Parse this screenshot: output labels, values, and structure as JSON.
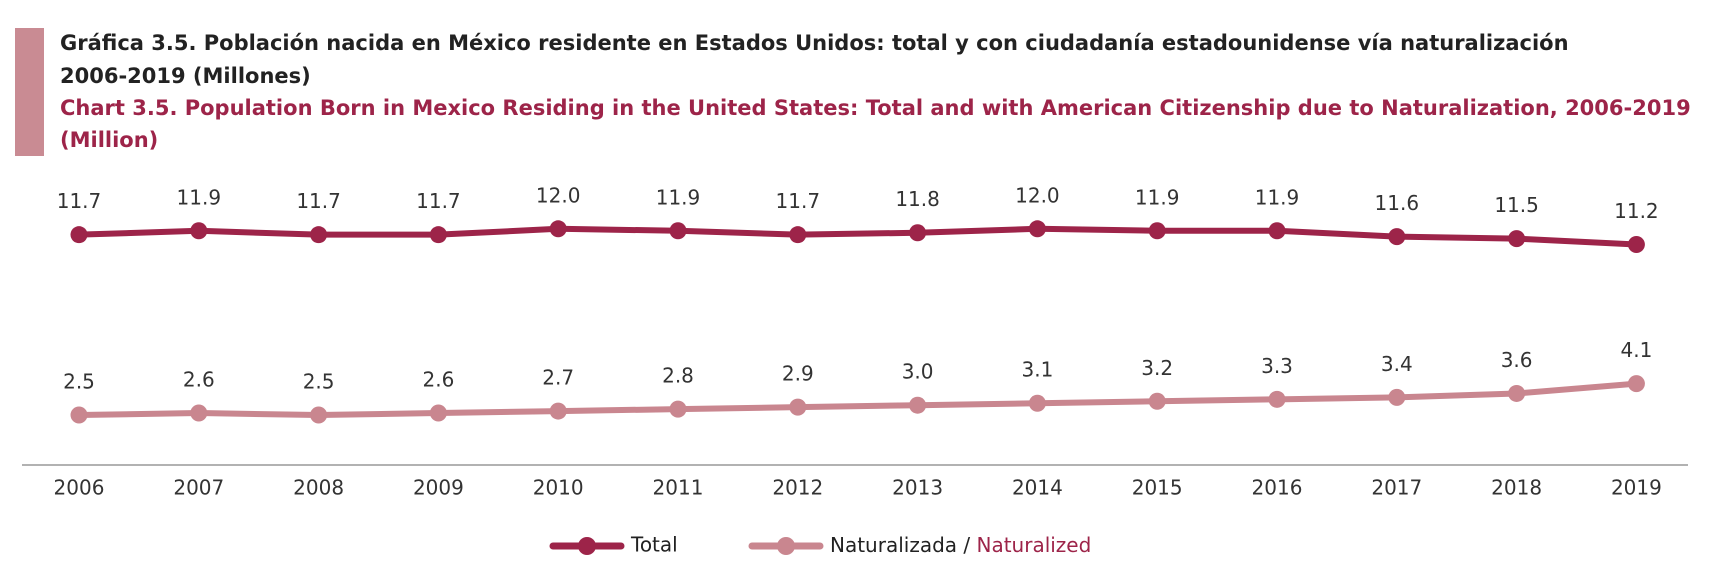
{
  "chart_data": {
    "type": "line",
    "title": [
      "Gráfica 3.5. Población nacida en México residente en Estados Unidos: total y con ciudadanía estadounidense vía naturalización",
      "2006-2019 (Millones)"
    ],
    "subtitle": [
      "Chart 3.5. Population Born in Mexico Residing in the United States: Total and with American Citizenship due to Naturalization, 2006-2019",
      "(Million)"
    ],
    "x": [
      2006,
      2007,
      2008,
      2009,
      2010,
      2011,
      2012,
      2013,
      2014,
      2015,
      2016,
      2017,
      2018,
      2019
    ],
    "series": [
      {
        "name": "Total",
        "color": "#9d2449",
        "values": [
          11.7,
          11.9,
          11.7,
          11.7,
          12.0,
          11.9,
          11.7,
          11.8,
          12.0,
          11.9,
          11.9,
          11.6,
          11.5,
          11.2
        ],
        "value_labels": [
          "11.7",
          "11.9",
          "11.7",
          "11.7",
          "12.0",
          "11.9",
          "11.7",
          "11.8",
          "12.0",
          "11.9",
          "11.9",
          "11.6",
          "11.5",
          "11.2"
        ]
      },
      {
        "name": "Naturalizada / Naturalized",
        "color": "#c9868f",
        "values": [
          2.5,
          2.6,
          2.5,
          2.6,
          2.7,
          2.8,
          2.9,
          3.0,
          3.1,
          3.2,
          3.3,
          3.4,
          3.6,
          4.1
        ],
        "value_labels": [
          "2.5",
          "2.6",
          "2.5",
          "2.6",
          "2.7",
          "2.8",
          "2.9",
          "3.0",
          "3.1",
          "3.2",
          "3.3",
          "3.4",
          "3.6",
          "4.1"
        ]
      }
    ],
    "grid": false,
    "legend": "bottom"
  }
}
